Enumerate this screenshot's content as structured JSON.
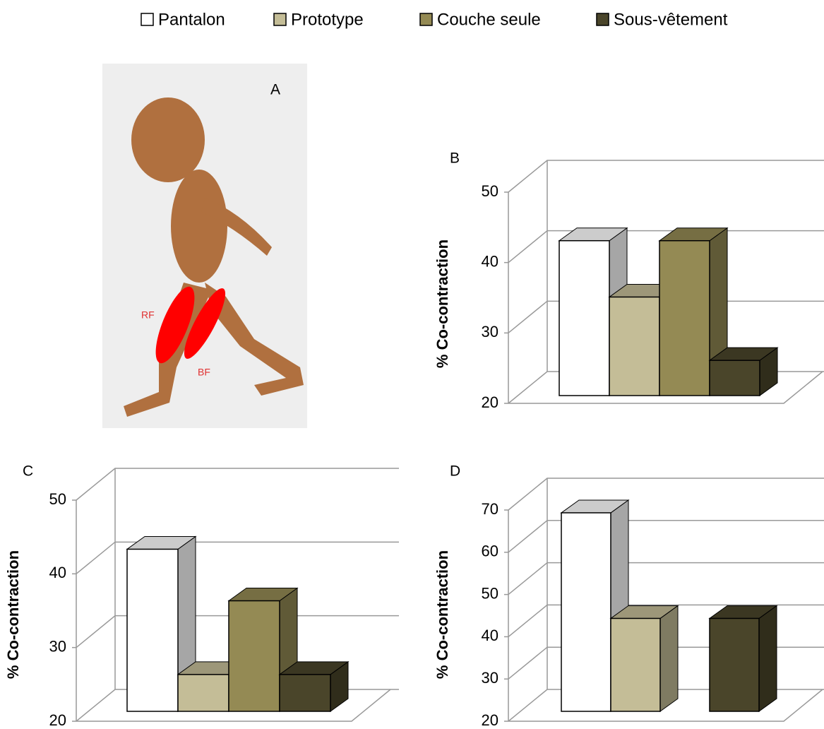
{
  "illustration": {
    "label": "A",
    "muscles": [
      "RF",
      "BF"
    ]
  },
  "chart_data": [
    {
      "type": "bar",
      "panel": "B",
      "y_label": "% Co-contraction",
      "categories": [
        null
      ],
      "series": [
        {
          "name": "Pantalon",
          "color": "#ffffff",
          "values": [
            42
          ]
        },
        {
          "name": "Prototype",
          "color": "#c4bd97",
          "values": [
            34
          ]
        },
        {
          "name": "Couche seule",
          "color": "#948a54",
          "values": [
            42
          ]
        },
        {
          "name": "Sous-vêtement",
          "color": "#4a452a",
          "values": [
            25
          ]
        }
      ],
      "ylim": [
        20,
        50
      ],
      "yticks": [
        20,
        30,
        40,
        50
      ],
      "grid": true
    },
    {
      "type": "bar",
      "panel": "C",
      "y_label": "% Co-contraction",
      "categories": [
        null
      ],
      "series": [
        {
          "name": "Pantalon",
          "color": "#ffffff",
          "values": [
            42
          ]
        },
        {
          "name": "Prototype",
          "color": "#c4bd97",
          "values": [
            25
          ]
        },
        {
          "name": "Couche seule",
          "color": "#948a54",
          "values": [
            35
          ]
        },
        {
          "name": "Sous-vêtement",
          "color": "#4a452a",
          "values": [
            25
          ]
        }
      ],
      "ylim": [
        20,
        50
      ],
      "yticks": [
        20,
        30,
        40,
        50
      ],
      "grid": true
    },
    {
      "type": "bar",
      "panel": "D",
      "y_label": "% Co-contraction",
      "categories": [
        null
      ],
      "series": [
        {
          "name": "Pantalon",
          "color": "#ffffff",
          "values": [
            67
          ]
        },
        {
          "name": "Prototype",
          "color": "#c4bd97",
          "values": [
            42
          ]
        },
        {
          "name": "Couche seule",
          "color": "#948a54",
          "values": [
            null
          ]
        },
        {
          "name": "Sous-vêtement",
          "color": "#4a452a",
          "values": [
            42
          ]
        }
      ],
      "ylim": [
        20,
        70
      ],
      "yticks": [
        20,
        30,
        40,
        50,
        60,
        70
      ],
      "grid": true
    }
  ]
}
